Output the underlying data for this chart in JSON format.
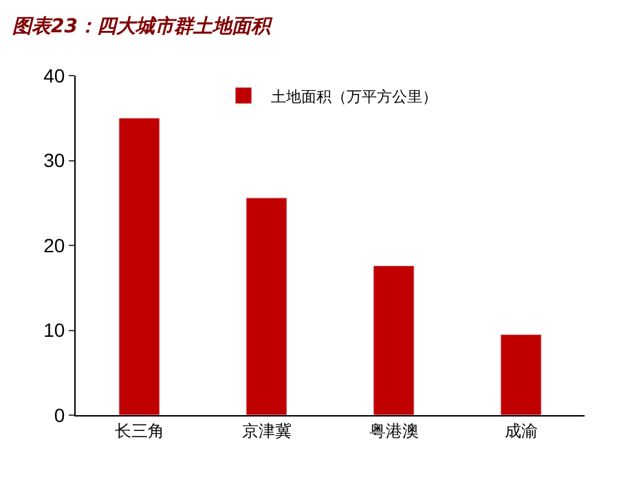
{
  "chart_data": {
    "type": "bar",
    "title": "图表23：四大城市群土地面积",
    "categories": [
      "长三角",
      "京津冀",
      "粤港澳",
      "成渝"
    ],
    "series": [
      {
        "name": "土地面积（万平方公里）",
        "color": "#c00000",
        "values": [
          35.0,
          25.6,
          17.6,
          9.5
        ]
      }
    ],
    "ylim": [
      0,
      40
    ],
    "yticks": [
      0,
      10,
      20,
      30,
      40
    ],
    "legend": "top"
  }
}
